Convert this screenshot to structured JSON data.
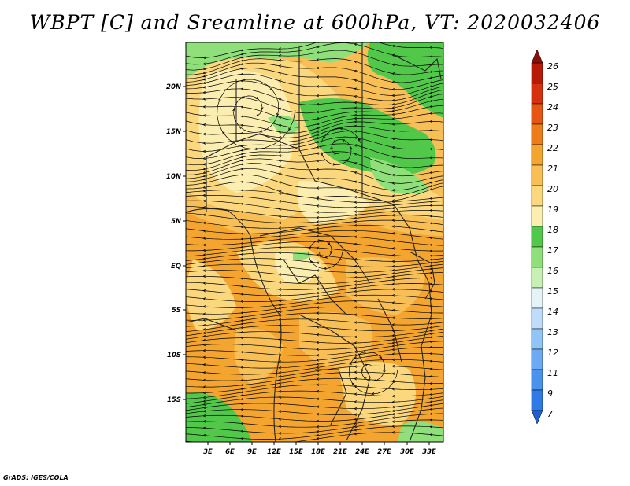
{
  "title": "WBPT [C] and Sreamline at 600hPa, VT: 2020032406",
  "credit": "GrADS: IGES/COLA",
  "map": {
    "lat_labels": [
      "20N",
      "15N",
      "10N",
      "5N",
      "EQ",
      "5S",
      "10S",
      "15S"
    ],
    "lon_labels": [
      "3E",
      "6E",
      "9E",
      "12E",
      "15E",
      "18E",
      "21E",
      "24E",
      "27E",
      "30E",
      "33E"
    ]
  },
  "colorbar": {
    "labels": [
      "7",
      "9",
      "11",
      "12",
      "13",
      "14",
      "15",
      "16",
      "17",
      "18",
      "19",
      "20",
      "21",
      "22",
      "23",
      "24",
      "25",
      "26"
    ],
    "colors": [
      "#1e5fd8",
      "#2f7ae6",
      "#4a92ee",
      "#6caaf3",
      "#92c4f7",
      "#bfdcfa",
      "#e4f3f6",
      "#c6f0b4",
      "#8fe07a",
      "#52c84a",
      "#fbeeb0",
      "#fbd77e",
      "#f8bf56",
      "#f4a52f",
      "#ef7c1a",
      "#e65512",
      "#d7300e",
      "#b71a08",
      "#8c0d04"
    ]
  },
  "fields": {
    "green_color": "#52c84a",
    "light_green_color": "#8fe07a",
    "yellow_color": "#fbd77e",
    "light_yellow_color": "#fbeeb0",
    "orange_color": "#f4a52f",
    "mid_orange_color": "#f8bf56"
  }
}
